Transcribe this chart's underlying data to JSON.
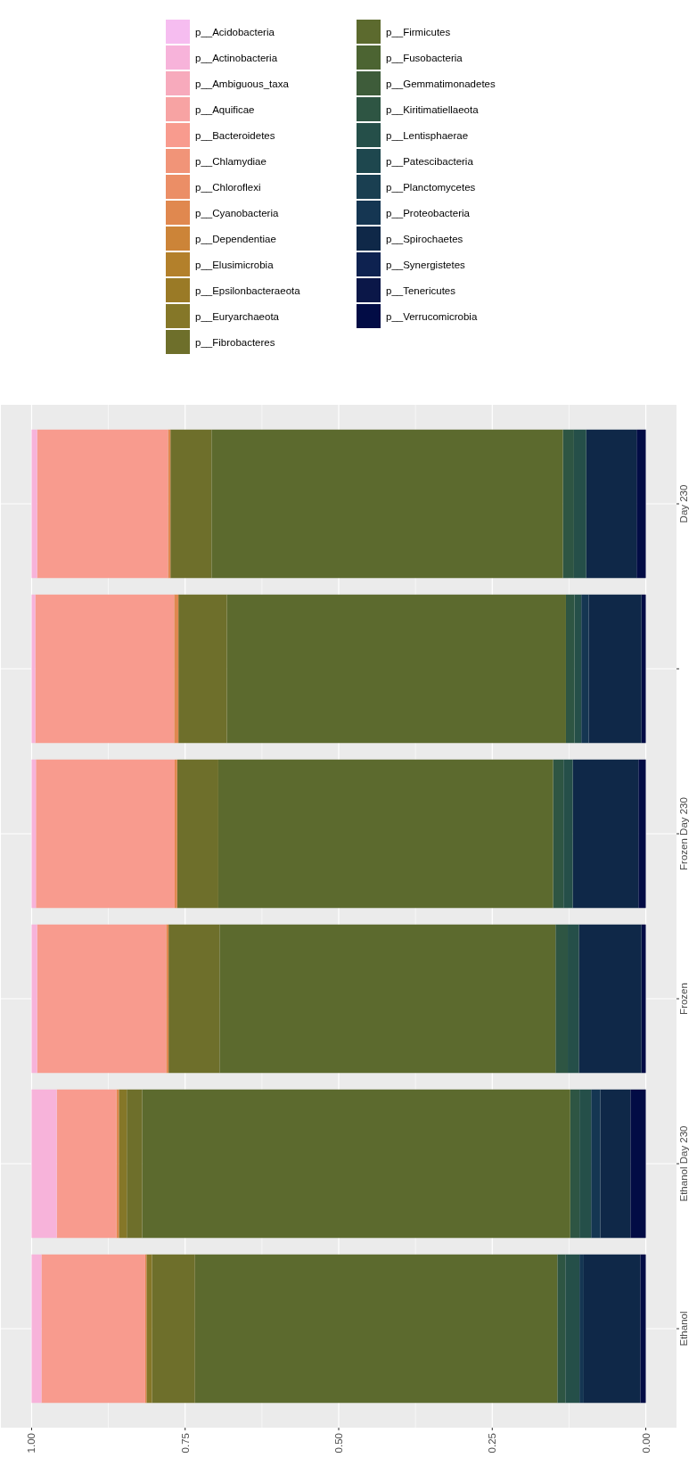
{
  "chart_data": {
    "type": "bar",
    "orientation": "horizontal",
    "stacked": true,
    "legend": "top",
    "grid": true,
    "categories": [
      "Day 230",
      null,
      "Frozen Day 230",
      "Frozen",
      "Ethanol Day 230",
      "Ethanol"
    ],
    "xlim": [
      1,
      0
    ],
    "xticks": [
      {
        "value": 1,
        "label": "1.00"
      },
      {
        "value": 0.75,
        "label": "0.75"
      },
      {
        "value": 0.5,
        "label": "0.50"
      },
      {
        "value": 0.25,
        "label": "0.25"
      },
      {
        "value": 0,
        "label": "0.00"
      }
    ],
    "series": [
      {
        "name": "p__Verrucomicrobia",
        "color": "#020c45",
        "values": [
          0.015,
          0.007,
          0.012,
          0.007,
          0.025,
          0.009
        ]
      },
      {
        "name": "p__Tenericutes",
        "color": "#0b1748",
        "values": [
          0,
          0,
          0,
          0,
          0,
          0
        ]
      },
      {
        "name": "p__Synergistetes",
        "color": "#0e2250",
        "values": [
          0,
          0,
          0,
          0,
          0,
          0
        ]
      },
      {
        "name": "p__Spirochaetes",
        "color": "#0f2848",
        "values": [
          0.082,
          0.086,
          0.107,
          0.102,
          0.049,
          0.092
        ]
      },
      {
        "name": "p__Proteobacteria",
        "color": "#153652",
        "values": [
          0,
          0.012,
          0,
          0,
          0.015,
          0.007
        ]
      },
      {
        "name": "p__Planctomycetes",
        "color": "#1a3f51",
        "values": [
          0,
          0,
          0,
          0,
          0,
          0
        ]
      },
      {
        "name": "p__Patescibacteria",
        "color": "#1e474e",
        "values": [
          0,
          0,
          0,
          0,
          0,
          0
        ]
      },
      {
        "name": "p__Lentisphaerae",
        "color": "#254f49",
        "values": [
          0.02,
          0.011,
          0.015,
          0.018,
          0.019,
          0.023
        ]
      },
      {
        "name": "p__Kiritimatiellaeota",
        "color": "#2e5543",
        "values": [
          0.018,
          0.014,
          0.017,
          0.02,
          0.015,
          0.013
        ]
      },
      {
        "name": "p__Gemmatimonadetes",
        "color": "#3e5c3a",
        "values": [
          0,
          0,
          0,
          0,
          0,
          0
        ]
      },
      {
        "name": "p__Fusobacteria",
        "color": "#4c6432",
        "values": [
          0,
          0,
          0,
          0,
          0,
          0
        ]
      },
      {
        "name": "p__Firmicutes",
        "color": "#5c6a2e",
        "values": [
          0.572,
          0.552,
          0.545,
          0.547,
          0.697,
          0.59
        ]
      },
      {
        "name": "p__Fibrobacteres",
        "color": "#6e6f2b",
        "values": [
          0.067,
          0.079,
          0.067,
          0.083,
          0.025,
          0.07
        ]
      },
      {
        "name": "p__Euryarchaeota",
        "color": "#857728",
        "values": [
          0,
          0,
          0,
          0,
          0.013,
          0.009
        ]
      },
      {
        "name": "p__Epsilonbacteraeota",
        "color": "#9a7a26",
        "values": [
          0,
          0,
          0,
          0,
          0,
          0
        ]
      },
      {
        "name": "p__Elusimicrobia",
        "color": "#b3802b",
        "values": [
          0,
          0,
          0,
          0,
          0,
          0
        ]
      },
      {
        "name": "p__Dependentiae",
        "color": "#cc8438",
        "values": [
          0,
          0,
          0,
          0,
          0,
          0
        ]
      },
      {
        "name": "p__Cyanobacteria",
        "color": "#e0884f",
        "values": [
          0.004,
          0.007,
          0.004,
          0.004,
          0.004,
          0.002
        ]
      },
      {
        "name": "p__Chloroflexi",
        "color": "#eb8e66",
        "values": [
          0,
          0,
          0,
          0,
          0,
          0
        ]
      },
      {
        "name": "p__Chlamydiae",
        "color": "#f19478",
        "values": [
          0,
          0,
          0,
          0,
          0,
          0
        ]
      },
      {
        "name": "p__Bacteroidetes",
        "color": "#f89b8e",
        "values": [
          0.213,
          0.226,
          0.226,
          0.21,
          0.097,
          0.169
        ]
      },
      {
        "name": "p__Aquificae",
        "color": "#f7a3a3",
        "values": [
          0,
          0,
          0,
          0,
          0,
          0
        ]
      },
      {
        "name": "p__Ambiguous_taxa",
        "color": "#f7aabc",
        "values": [
          0,
          0,
          0,
          0,
          0,
          0
        ]
      },
      {
        "name": "p__Actinobacteria",
        "color": "#f7b3da",
        "values": [
          0.009,
          0.006,
          0.007,
          0.009,
          0.041,
          0.016
        ]
      },
      {
        "name": "p__Acidobacteria",
        "color": "#f6bdf0",
        "values": [
          0,
          0,
          0,
          0,
          0,
          0
        ]
      }
    ]
  }
}
